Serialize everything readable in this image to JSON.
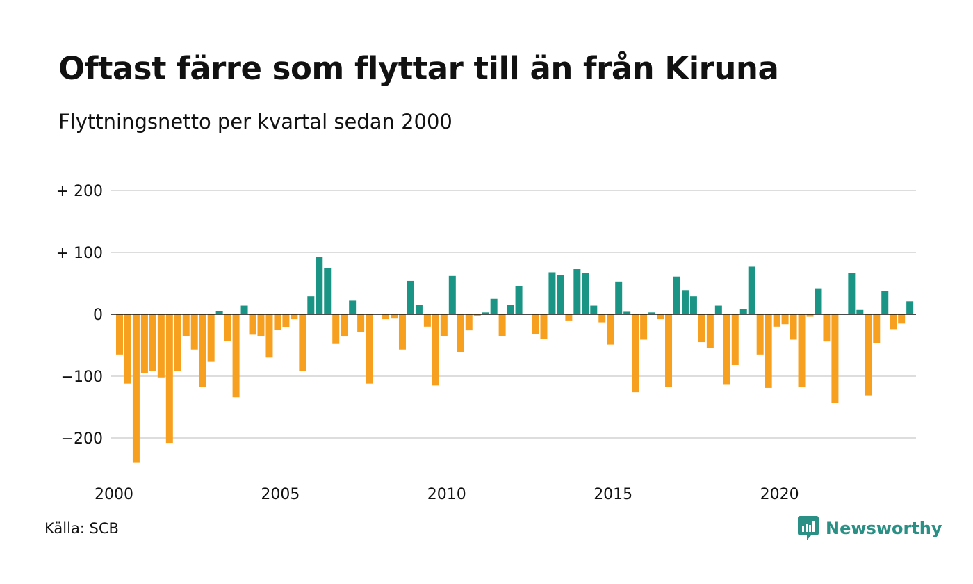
{
  "header": {
    "title": "Oftast färre som flyttar till än från Kiruna",
    "subtitle": "Flyttningsnetto per kvartal sedan 2000"
  },
  "footer": {
    "source": "Källa: SCB",
    "brand": "Newsworthy"
  },
  "colors": {
    "positive": "#1a9484",
    "negative": "#f7a01f",
    "grid": "#dddddd",
    "zero_line": "#111111",
    "brand": "#2a8f85"
  },
  "chart_data": {
    "type": "bar",
    "title": "Oftast färre som flyttar till än från Kiruna",
    "subtitle": "Flyttningsnetto per kvartal sedan 2000",
    "xlabel": "",
    "ylabel": "",
    "x_start": "2000 Q1",
    "x_ticks": [
      {
        "value": 2000,
        "label": "2000"
      },
      {
        "value": 2005,
        "label": "2005"
      },
      {
        "value": 2010,
        "label": "2010"
      },
      {
        "value": 2015,
        "label": "2015"
      },
      {
        "value": 2020,
        "label": "2020"
      }
    ],
    "y_ticks": [
      {
        "value": 200,
        "label": "+ 200"
      },
      {
        "value": 100,
        "label": "+ 100"
      },
      {
        "value": 0,
        "label": "0"
      },
      {
        "value": -100,
        "label": "−100"
      },
      {
        "value": -200,
        "label": "−200"
      }
    ],
    "ylim": [
      -250,
      200
    ],
    "grid": true,
    "values": [
      -65,
      -112,
      -240,
      -95,
      -92,
      -102,
      -208,
      -92,
      -35,
      -57,
      -117,
      -76,
      5,
      -43,
      -134,
      14,
      -33,
      -35,
      -70,
      -25,
      -21,
      -8,
      -92,
      29,
      93,
      75,
      -48,
      -36,
      22,
      -29,
      -112,
      0,
      -8,
      -7,
      -57,
      54,
      15,
      -20,
      -115,
      -35,
      62,
      -61,
      -26,
      -3,
      3,
      25,
      -35,
      15,
      46,
      0,
      -32,
      -40,
      68,
      63,
      -10,
      73,
      67,
      14,
      -13,
      -49,
      53,
      4,
      -126,
      -41,
      3,
      -8,
      -118,
      61,
      39,
      29,
      -45,
      -54,
      14,
      -114,
      -82,
      8,
      77,
      -65,
      -119,
      -20,
      -16,
      -41,
      -118,
      -4,
      42,
      -44,
      -143,
      0,
      67,
      7,
      -131,
      -47,
      38,
      -24,
      -15,
      21
    ]
  }
}
